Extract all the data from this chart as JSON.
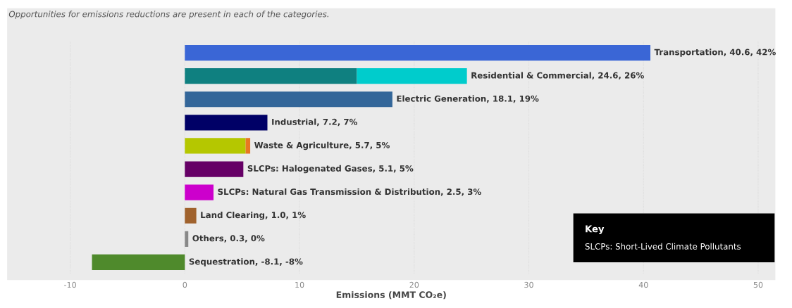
{
  "chart_data": {
    "type": "bar",
    "orientation": "horizontal",
    "stacked": true,
    "subtitle": "Opportunities for emissions reductions are present in each of the categories.",
    "xlabel": "Emissions (MMT CO₂e)",
    "categories": [
      null,
      null,
      null,
      null,
      null,
      null,
      null,
      null,
      null,
      null
    ],
    "series": [
      {
        "colors": [
          "#3a66d6",
          "#0f8080",
          "#336699",
          "#000066",
          "#b5c700",
          "#660066",
          "#cc00cc",
          "#a0622d",
          "#888888",
          "#4f8a2c"
        ],
        "values": [
          40.6,
          15.0,
          18.1,
          7.2,
          5.3,
          5.1,
          2.5,
          1.0,
          0.3,
          -8.1
        ]
      },
      {
        "colors": [
          null,
          "#00cccc",
          null,
          null,
          "#e87722",
          null,
          null,
          null,
          null,
          null
        ],
        "values": [
          null,
          9.6,
          null,
          null,
          0.4,
          null,
          null,
          null,
          null,
          null
        ]
      }
    ],
    "value_labels": [
      "Transportation, 40.6, 42%",
      "Residential & Commercial, 24.6, 26%",
      "Electric Generation, 18.1, 19%",
      "Industrial, 7.2, 7%",
      "Waste & Agriculture, 5.7, 5%",
      "SLCPs: Halogenated Gases, 5.1, 5%",
      "SLCPs: Natural Gas Transmission & Distribution, 2.5, 3%",
      "Land Clearing, 1.0, 1%",
      "Others, 0.3, 0%",
      "Sequestration, -8.1, -8%"
    ],
    "annotations": [
      "Key",
      "SLCPs: Short-Lived Climate Pollutants"
    ],
    "xlim": [
      -15.5,
      51.5
    ],
    "xticks": [
      -10,
      0,
      10,
      20,
      30,
      40,
      50
    ],
    "grid": "x",
    "legend": false
  }
}
